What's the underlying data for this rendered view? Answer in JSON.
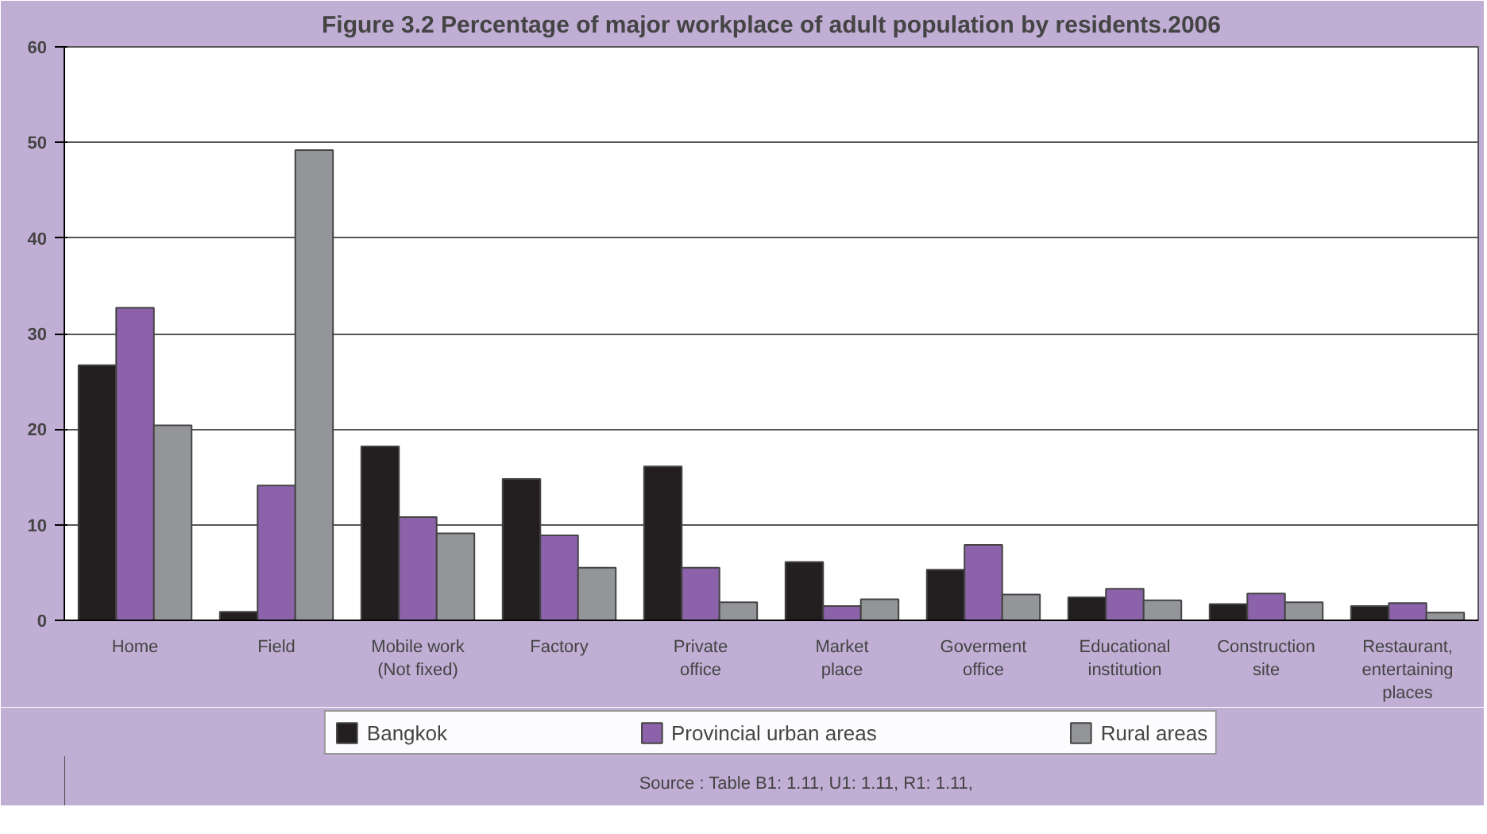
{
  "chart_data": {
    "type": "bar",
    "title": "Figure 3.2 Percentage of major workplace of adult population by residents.2006",
    "categories": [
      "Home",
      "Field",
      "Mobile work\n(Not fixed)",
      "Factory",
      "Private\noffice",
      "Market\nplace",
      "Goverment\noffice",
      "Educational\ninstitution",
      "Construction\nsite",
      "Restaurant,\nentertaining\nplaces"
    ],
    "series": [
      {
        "name": "Bangkok",
        "color": "#231f20",
        "values": [
          26.7,
          0.9,
          18.2,
          14.8,
          16.1,
          6.1,
          5.3,
          2.4,
          1.7,
          1.5
        ]
      },
      {
        "name": "Provincial urban areas",
        "color": "#8c62aa",
        "values": [
          32.7,
          14.1,
          10.8,
          8.9,
          5.5,
          1.5,
          7.9,
          3.3,
          2.8,
          1.8
        ]
      },
      {
        "name": "Rural areas",
        "color": "#939598",
        "values": [
          20.4,
          49.2,
          9.1,
          5.5,
          1.9,
          2.2,
          2.7,
          2.1,
          1.9,
          0.8
        ]
      }
    ],
    "ylim": [
      0,
      60
    ],
    "yticks": [
      0,
      10,
      20,
      30,
      40,
      50,
      60
    ],
    "grid": "y",
    "legend": "bottom",
    "annotations": [
      "Source : Table B1: 1.11, U1: 1.11, R1: 1.11,"
    ]
  }
}
